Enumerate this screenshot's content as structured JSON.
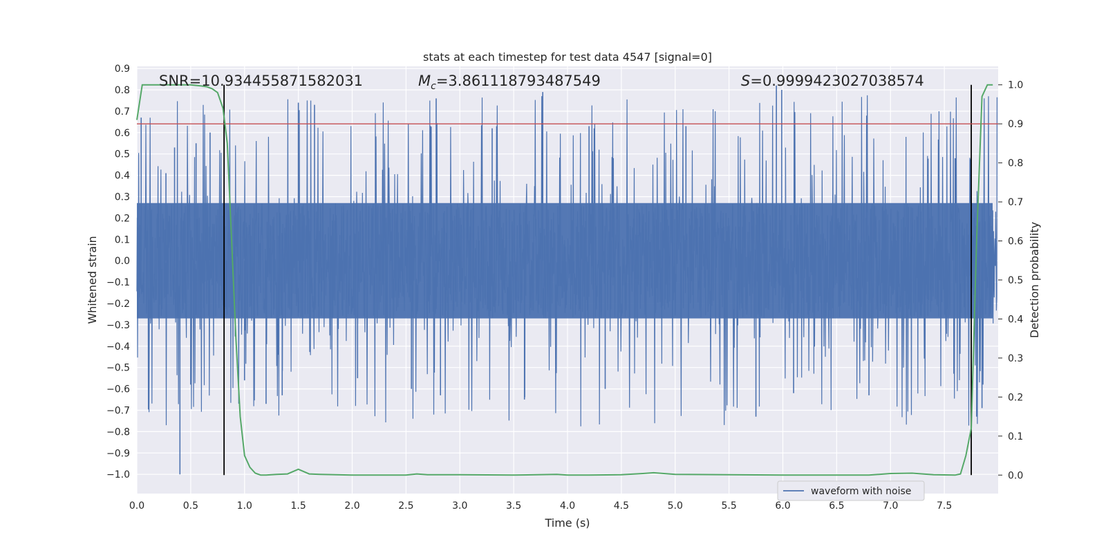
{
  "chart_data": {
    "type": "line",
    "title": "stats at each timestep for test data 4547 [signal=0]",
    "xlabel": "Time (s)",
    "ylabel": "Whitened strain",
    "y2label": "Detection probability",
    "xlim": [
      0.0,
      8.0
    ],
    "ylim": [
      -1.09,
      0.91
    ],
    "y2lim": [
      -0.0473,
      1.0473
    ],
    "x_ticks": [
      "0.0",
      "0.5",
      "1.0",
      "1.5",
      "2.0",
      "2.5",
      "3.0",
      "3.5",
      "4.0",
      "4.5",
      "5.0",
      "5.5",
      "6.0",
      "6.5",
      "7.0",
      "7.5"
    ],
    "y_ticks": [
      "0.9",
      "0.8",
      "0.7",
      "0.6",
      "0.5",
      "0.4",
      "0.3",
      "0.2",
      "0.1",
      "0.0",
      "−0.1",
      "−0.2",
      "−0.3",
      "−0.4",
      "−0.5",
      "−0.6",
      "−0.7",
      "−0.8",
      "−0.9",
      "−1.0"
    ],
    "y2_ticks": [
      "1.0",
      "0.9",
      "0.8",
      "0.7",
      "0.6",
      "0.5",
      "0.4",
      "0.3",
      "0.2",
      "0.1",
      "0.0"
    ],
    "grid": true,
    "annotations": {
      "snr": "SNR=10.934455871582031",
      "mc_symbol": "M",
      "mc_sub": "c",
      "mc_value": "=3.861118793487549",
      "s_symbol": "S",
      "s_value": "=0.9999423027038574"
    },
    "legend": {
      "label": "waveform with noise",
      "position": "lower-right"
    },
    "threshold_line": {
      "y2": 0.9,
      "color": "#c44e52"
    },
    "vertical_lines": [
      0.81,
      7.75
    ],
    "series": [
      {
        "name": "waveform with noise",
        "color": "#4c72b0",
        "axis": "left",
        "noise_envelope": 0.27,
        "spikes": [
          [
            0.04,
            0.67
          ],
          [
            0.27,
            0.41
          ],
          [
            0.35,
            0.53
          ],
          [
            0.4,
            -1.0
          ],
          [
            0.5,
            -0.58
          ],
          [
            0.55,
            0.55
          ],
          [
            0.68,
            0.6
          ],
          [
            1.0,
            -0.56
          ],
          [
            1.2,
            -0.67
          ],
          [
            1.35,
            -0.63
          ],
          [
            1.5,
            0.74
          ],
          [
            1.65,
            0.73
          ],
          [
            2.05,
            -0.55
          ],
          [
            2.55,
            -0.6
          ],
          [
            2.78,
            0.76
          ],
          [
            2.82,
            -0.63
          ],
          [
            3.3,
            0.62
          ],
          [
            3.6,
            -0.65
          ],
          [
            3.77,
            0.79
          ],
          [
            4.2,
            0.63
          ],
          [
            4.35,
            -0.6
          ],
          [
            5.1,
            0.63
          ],
          [
            5.75,
            -0.73
          ],
          [
            5.94,
            0.82
          ],
          [
            5.99,
            0.8
          ],
          [
            6.1,
            -0.62
          ],
          [
            6.8,
            -0.63
          ],
          [
            7.6,
            0.48
          ],
          [
            7.8,
            -0.73
          ],
          [
            7.85,
            -0.69
          ]
        ]
      },
      {
        "name": "",
        "color": "#55a868",
        "axis": "right",
        "x": [
          0.0,
          0.05,
          0.1,
          0.2,
          0.3,
          0.4,
          0.5,
          0.6,
          0.65,
          0.7,
          0.75,
          0.8,
          0.84,
          0.88,
          0.92,
          0.96,
          1.0,
          1.05,
          1.1,
          1.15,
          1.2,
          1.3,
          1.4,
          1.5,
          1.6,
          1.7,
          2.0,
          2.5,
          2.6,
          2.7,
          3.0,
          3.5,
          3.9,
          4.0,
          4.2,
          4.5,
          4.7,
          4.8,
          5.0,
          5.5,
          6.0,
          6.5,
          6.8,
          7.0,
          7.2,
          7.4,
          7.6,
          7.65,
          7.7,
          7.75,
          7.8,
          7.85,
          7.9,
          7.95
        ],
        "y": [
          0.91,
          1.0,
          1.0,
          1.0,
          1.0,
          1.0,
          1.0,
          0.997,
          0.995,
          0.99,
          0.98,
          0.94,
          0.85,
          0.6,
          0.35,
          0.15,
          0.05,
          0.02,
          0.005,
          0.0,
          0.0,
          0.002,
          0.003,
          0.015,
          0.003,
          0.002,
          0.0,
          0.0,
          0.003,
          0.001,
          0.001,
          0.0,
          0.002,
          0.0,
          0.0,
          0.001,
          0.004,
          0.006,
          0.002,
          0.001,
          0.0,
          0.0,
          0.0,
          0.004,
          0.005,
          0.001,
          0.0,
          0.003,
          0.05,
          0.12,
          0.6,
          0.97,
          1.0,
          1.0
        ]
      }
    ]
  }
}
